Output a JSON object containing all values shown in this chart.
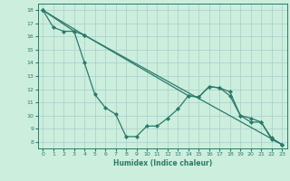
{
  "title": "",
  "xlabel": "Humidex (Indice chaleur)",
  "ylabel": "",
  "bg_color": "#cceedd",
  "line_color": "#2a7a6a",
  "grid_color": "#aacccc",
  "xlim": [
    -0.5,
    23.5
  ],
  "ylim": [
    7.5,
    18.5
  ],
  "xticks": [
    0,
    1,
    2,
    3,
    4,
    5,
    6,
    7,
    8,
    9,
    10,
    11,
    12,
    13,
    14,
    15,
    16,
    17,
    18,
    19,
    20,
    21,
    22,
    23
  ],
  "yticks": [
    8,
    9,
    10,
    11,
    12,
    13,
    14,
    15,
    16,
    17,
    18
  ],
  "series": [
    {
      "x": [
        0,
        1,
        2,
        3,
        4,
        5,
        6,
        7,
        8,
        9,
        10,
        11,
        12,
        13,
        14,
        15,
        16,
        17,
        18,
        19,
        20,
        21,
        22,
        23
      ],
      "y": [
        18,
        16.7,
        16.4,
        16.4,
        14.0,
        11.6,
        10.6,
        10.1,
        8.4,
        8.4,
        9.2,
        9.2,
        9.8,
        10.5,
        11.5,
        11.4,
        12.2,
        12.1,
        11.8,
        10.0,
        9.8,
        9.5,
        8.2,
        7.8
      ]
    },
    {
      "x": [
        0,
        3,
        4,
        23
      ],
      "y": [
        18,
        16.4,
        16.1,
        7.8
      ]
    },
    {
      "x": [
        0,
        4,
        14,
        15,
        16,
        17,
        18,
        19,
        20,
        21,
        22,
        23
      ],
      "y": [
        18,
        16.1,
        11.5,
        11.4,
        12.2,
        12.1,
        11.5,
        10.0,
        9.5,
        9.5,
        8.3,
        7.8
      ]
    }
  ]
}
